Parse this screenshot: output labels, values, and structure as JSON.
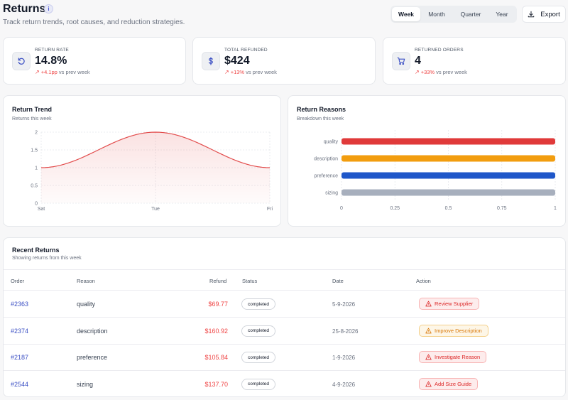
{
  "header": {
    "title": "Returns",
    "info_icon": "info-icon",
    "subtitle": "Track return trends, root causes, and reduction strategies.",
    "range_options": [
      "Week",
      "Month",
      "Quarter",
      "Year"
    ],
    "active_range": "Week",
    "export_label": "Export"
  },
  "kpis": [
    {
      "label": "RETURN RATE",
      "value": "14.8%",
      "delta": "+4.1pp",
      "delta_suffix": "vs prev week",
      "icon": "refresh-icon"
    },
    {
      "label": "TOTAL REFUNDED",
      "value": "$424",
      "delta": "+13%",
      "delta_suffix": "vs prev week",
      "icon": "dollar-icon"
    },
    {
      "label": "RETURNED ORDERS",
      "value": "4",
      "delta": "+33%",
      "delta_suffix": "vs prev week",
      "icon": "cart-icon"
    }
  ],
  "trend": {
    "title": "Return Trend",
    "subtitle": "Returns this week"
  },
  "reasons": {
    "title": "Return Reasons",
    "subtitle": "Breakdown this week"
  },
  "chart_data": [
    {
      "type": "area",
      "title": "Return Trend",
      "subtitle": "Returns this week",
      "x": [
        "Sat",
        "Tue",
        "Fri"
      ],
      "series": [
        {
          "values": [
            1,
            2,
            1
          ]
        }
      ],
      "ylim": [
        0,
        2
      ],
      "yticks": [
        "0",
        "0.5",
        "1",
        "1.5",
        "2"
      ],
      "grid": true,
      "color": "#e24b4b"
    },
    {
      "type": "bar",
      "orientation": "horizontal",
      "title": "Return Reasons",
      "subtitle": "Breakdown this week",
      "categories": [
        "quality",
        "description",
        "preference",
        "sizing"
      ],
      "values": [
        1,
        1,
        1,
        1
      ],
      "colors": [
        "#e03a3a",
        "#f29d0f",
        "#1f57c9",
        "#a7afbd"
      ],
      "xlim": [
        0,
        1
      ],
      "xticks": [
        "0",
        "0.25",
        "0.5",
        "0.75",
        "1"
      ]
    }
  ],
  "recent": {
    "title": "Recent Returns",
    "subtitle": "Showing returns from this week",
    "columns": [
      "Order",
      "Reason",
      "Refund",
      "Status",
      "Date",
      "Action"
    ],
    "rows": [
      {
        "order": "#2363",
        "reason": "quality",
        "refund": "$69.77",
        "status": "completed",
        "date": "5-9-2026",
        "action": "Review Supplier",
        "action_tone": "red"
      },
      {
        "order": "#2374",
        "reason": "description",
        "refund": "$160.92",
        "status": "completed",
        "date": "25-8-2026",
        "action": "Improve Description",
        "action_tone": "amber"
      },
      {
        "order": "#2187",
        "reason": "preference",
        "refund": "$105.84",
        "status": "completed",
        "date": "1-9-2026",
        "action": "Investigate Reason",
        "action_tone": "red"
      },
      {
        "order": "#2544",
        "reason": "sizing",
        "refund": "$137.70",
        "status": "completed",
        "date": "4-9-2026",
        "action": "Add Size Guide",
        "action_tone": "red"
      }
    ]
  },
  "colors": {
    "accent_red": "#ef4444",
    "link_blue": "#3b4fc4"
  }
}
